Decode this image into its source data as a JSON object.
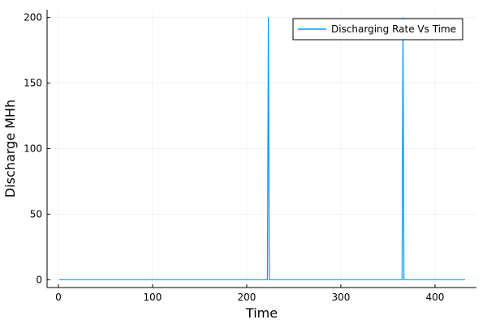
{
  "chart_data": {
    "type": "line",
    "title": "",
    "xlabel": "Time",
    "ylabel": "Discharge MHh",
    "xlim": [
      -12,
      444
    ],
    "ylim": [
      -6,
      206
    ],
    "xticks": [
      0,
      100,
      200,
      300,
      400
    ],
    "yticks": [
      0,
      50,
      100,
      150,
      200
    ],
    "grid": true,
    "legend_position": "top-right",
    "series": [
      {
        "name": "Discharging Rate Vs Time",
        "color": "#009af9",
        "x": [
          1,
          222,
          223,
          224,
          365,
          366,
          367,
          432
        ],
        "y": [
          0,
          0,
          200,
          0,
          0,
          200,
          0,
          0
        ]
      }
    ]
  }
}
